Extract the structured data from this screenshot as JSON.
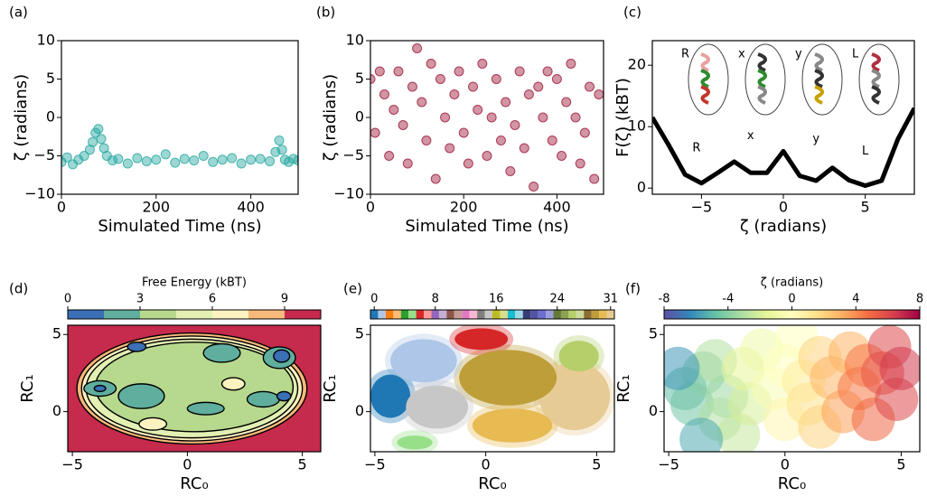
{
  "chart_data": [
    {
      "type": "scatter",
      "panel_label": "(a)",
      "xlabel": "Simulated Time (ns)",
      "ylabel": "ζ (radians)",
      "color": "#26a7a0",
      "x": [
        0,
        12,
        24,
        36,
        48,
        60,
        66,
        72,
        78,
        84,
        90,
        96,
        108,
        120,
        140,
        160,
        180,
        200,
        220,
        240,
        260,
        280,
        300,
        320,
        340,
        360,
        380,
        400,
        420,
        440,
        452,
        460,
        466,
        472,
        480,
        490,
        500
      ],
      "values": [
        -5.8,
        -5.2,
        -6.1,
        -5.5,
        -5.0,
        -4.2,
        -3.2,
        -2.0,
        -1.5,
        -2.8,
        -4.0,
        -5.0,
        -5.6,
        -5.4,
        -6.0,
        -5.3,
        -5.7,
        -5.5,
        -4.8,
        -5.9,
        -5.4,
        -5.6,
        -5.0,
        -5.8,
        -5.5,
        -5.3,
        -6.0,
        -5.5,
        -5.4,
        -5.7,
        -4.5,
        -3.0,
        -4.2,
        -5.5,
        -5.8,
        -5.4,
        -5.6
      ],
      "xlim": [
        0,
        500
      ],
      "ylim": [
        -10,
        10
      ],
      "xticks": [
        0,
        200,
        400
      ],
      "yticks": [
        {
          "value": -10,
          "label": "−10"
        },
        {
          "value": -5,
          "label": "−5"
        },
        0,
        5,
        10
      ]
    },
    {
      "type": "scatter",
      "panel_label": "(b)",
      "xlabel": "Simulated Time (ns)",
      "ylabel": "ζ (radians)",
      "color": "#9b1536",
      "x": [
        0,
        10,
        20,
        30,
        40,
        50,
        60,
        70,
        80,
        90,
        100,
        110,
        120,
        130,
        140,
        150,
        160,
        170,
        180,
        190,
        200,
        210,
        220,
        230,
        240,
        250,
        260,
        270,
        280,
        290,
        300,
        310,
        320,
        330,
        340,
        350,
        360,
        370,
        380,
        390,
        400,
        410,
        420,
        430,
        440,
        450,
        460,
        470,
        480,
        490
      ],
      "values": [
        5,
        -2,
        6,
        3,
        -5,
        1,
        6,
        -1,
        -6,
        4,
        9,
        2,
        -3,
        7,
        -8,
        5,
        0,
        -4,
        3,
        6,
        -2,
        -6,
        4,
        1,
        7,
        -5,
        0,
        5,
        -3,
        2,
        -7,
        -1,
        6,
        -4,
        3,
        -9,
        4,
        0,
        6,
        -3,
        5,
        -5,
        2,
        7,
        0,
        -6,
        -2,
        4,
        -8,
        3
      ],
      "xlim": [
        0,
        500
      ],
      "ylim": [
        -10,
        10
      ],
      "xticks": [
        0,
        200,
        400
      ],
      "yticks": [
        {
          "value": -10,
          "label": "−10"
        },
        {
          "value": -5,
          "label": "−5"
        },
        0,
        5,
        10
      ]
    },
    {
      "type": "line",
      "panel_label": "(c)",
      "xlabel": "ζ (radians)",
      "ylabel": "F(ζ) (kBT)",
      "color": "#000000",
      "x": [
        -8,
        -7,
        -6,
        -5,
        -4,
        -3,
        -2,
        -1,
        0,
        1,
        2,
        3,
        4,
        5,
        6,
        7,
        8
      ],
      "values": [
        11.5,
        7,
        2.2,
        0.8,
        2.5,
        4.3,
        2.5,
        2.5,
        6,
        2.0,
        1.2,
        3.3,
        1.3,
        0.4,
        1.2,
        8,
        13
      ],
      "xlim": [
        -8,
        8
      ],
      "ylim": [
        -1,
        24
      ],
      "xticks": [
        {
          "value": -5,
          "label": "−5"
        },
        0,
        5
      ],
      "yticks": [
        0,
        10,
        20
      ],
      "annotations": [
        {
          "text": "R",
          "x": -5.3,
          "y": 6.5
        },
        {
          "text": "x",
          "x": -2,
          "y": 8.5
        },
        {
          "text": "y",
          "x": 2,
          "y": 8
        },
        {
          "text": "L",
          "x": 5,
          "y": 6
        }
      ],
      "inset_labels": [
        "R",
        "x",
        "y",
        "L"
      ]
    },
    {
      "type": "contour",
      "panel_label": "(d)",
      "xlabel": "RC₀",
      "ylabel": "RC₁",
      "background_level": 10,
      "xlim": [
        -5.2,
        5.8
      ],
      "ylim": [
        -2.6,
        5.6
      ],
      "xticks": [
        {
          "value": -5,
          "label": "−5"
        },
        0,
        5
      ],
      "yticks": [
        0,
        5
      ],
      "colorbar": {
        "label": "Free Energy (kBT)",
        "lim": [
          0,
          10.5
        ],
        "ticks": [
          0,
          3,
          6,
          9
        ],
        "bounds": [
          0,
          1.5,
          3,
          4.5,
          6,
          7.5,
          9,
          10.5
        ],
        "colors": [
          "#3b6fb6",
          "#5fae9e",
          "#b7d98e",
          "#e3f0b4",
          "#fdf3c1",
          "#f8b97a",
          "#c62a4c"
        ]
      },
      "regions": [
        {
          "x": 0.2,
          "y": 1.5,
          "rx": 5.0,
          "ry": 3.6,
          "level": 8.0
        },
        {
          "x": 0.2,
          "y": 1.5,
          "rx": 4.8,
          "ry": 3.4,
          "level": 6.5
        },
        {
          "x": 0.2,
          "y": 1.5,
          "rx": 4.6,
          "ry": 3.2,
          "level": 5.0
        },
        {
          "x": 0.3,
          "y": 1.6,
          "rx": 4.3,
          "ry": 2.9,
          "level": 3.5
        },
        {
          "x": -1.5,
          "y": -0.8,
          "rx": 0.6,
          "ry": 0.4,
          "level": 6.0
        },
        {
          "x": 2.0,
          "y": 1.8,
          "rx": 0.5,
          "ry": 0.4,
          "level": 6.0
        },
        {
          "x": -2.0,
          "y": 1.0,
          "rx": 1.0,
          "ry": 0.8,
          "level": 2.0
        },
        {
          "x": 1.5,
          "y": 3.8,
          "rx": 0.8,
          "ry": 0.6,
          "level": 2.0
        },
        {
          "x": -3.8,
          "y": 1.5,
          "rx": 0.7,
          "ry": 0.5,
          "level": 2.0
        },
        {
          "x": 4.0,
          "y": 3.5,
          "rx": 0.7,
          "ry": 0.7,
          "level": 2.0
        },
        {
          "x": 3.3,
          "y": 0.8,
          "rx": 0.7,
          "ry": 0.5,
          "level": 2.0
        },
        {
          "x": 0.8,
          "y": 0.2,
          "rx": 0.8,
          "ry": 0.4,
          "level": 2.0
        },
        {
          "x": -2.2,
          "y": 4.2,
          "rx": 0.4,
          "ry": 0.3,
          "level": 0.5
        },
        {
          "x": 4.1,
          "y": 3.6,
          "rx": 0.35,
          "ry": 0.4,
          "level": 0.5
        },
        {
          "x": 4.2,
          "y": 1.0,
          "rx": 0.3,
          "ry": 0.3,
          "level": 0.5
        },
        {
          "x": -3.8,
          "y": 1.5,
          "rx": 0.25,
          "ry": 0.2,
          "level": 0.5
        }
      ]
    },
    {
      "type": "cluster_map",
      "panel_label": "(e)",
      "xlabel": "RC₀",
      "ylabel": "RC₁",
      "xlim": [
        -5.2,
        5.8
      ],
      "ylim": [
        -2.6,
        5.6
      ],
      "xticks": [
        {
          "value": -5,
          "label": "−5"
        },
        0,
        5
      ],
      "yticks": [
        0,
        5
      ],
      "colorbar": {
        "lim": [
          -0.5,
          31.5
        ],
        "ticks": [
          0,
          8,
          16,
          24,
          31
        ],
        "colors": [
          "#1f77b4",
          "#aec7e8",
          "#ff7f0e",
          "#ffbb78",
          "#2ca02c",
          "#98df8a",
          "#d62728",
          "#ff9896",
          "#9467bd",
          "#c5b0d5",
          "#8c564b",
          "#c49c94",
          "#e377c2",
          "#f7b6d2",
          "#7f7f7f",
          "#c7c7c7",
          "#bcbd22",
          "#dbdb8d",
          "#17becf",
          "#9edae5",
          "#393b79",
          "#5254a3",
          "#6b6ecf",
          "#9c9ede",
          "#637939",
          "#8ca252",
          "#b5cf6b",
          "#cedb9c",
          "#8c6d31",
          "#bd9e39",
          "#e7ba52",
          "#e7cb94"
        ]
      },
      "clusters": [
        {
          "x": 4.0,
          "y": 1.0,
          "rx": 1.6,
          "ry": 2.2,
          "id": 31
        },
        {
          "x": 4.2,
          "y": 3.6,
          "rx": 0.9,
          "ry": 1.0,
          "id": 26
        },
        {
          "x": 1.0,
          "y": 2.2,
          "rx": 2.2,
          "ry": 1.8,
          "id": 29
        },
        {
          "x": 1.2,
          "y": -0.9,
          "rx": 1.8,
          "ry": 1.1,
          "id": 30
        },
        {
          "x": -2.8,
          "y": 3.3,
          "rx": 1.5,
          "ry": 1.4,
          "id": 1
        },
        {
          "x": -4.3,
          "y": 1.0,
          "rx": 0.9,
          "ry": 1.4,
          "id": 0
        },
        {
          "x": -0.2,
          "y": 4.7,
          "rx": 1.2,
          "ry": 0.7,
          "id": 6
        },
        {
          "x": -2.2,
          "y": 0.3,
          "rx": 1.4,
          "ry": 1.4,
          "id": 15
        },
        {
          "x": -3.2,
          "y": -2.0,
          "rx": 0.8,
          "ry": 0.45,
          "id": 5
        }
      ]
    },
    {
      "type": "scatter",
      "panel_label": "(f)",
      "xlabel": "RC₀",
      "ylabel": "RC₁",
      "xlim": [
        -5.2,
        5.8
      ],
      "ylim": [
        -2.6,
        5.6
      ],
      "xticks": [
        {
          "value": -5,
          "label": "−5"
        },
        0,
        5
      ],
      "yticks": [
        0,
        5
      ],
      "x": [
        -4.3,
        -4,
        -3.5,
        -3,
        -2.5,
        -2.8,
        -2,
        -1.5,
        -1.8,
        -1,
        -0.5,
        0,
        0,
        0.5,
        0.8,
        1,
        1.5,
        1.5,
        2,
        2.5,
        2.8,
        3.2,
        3.5,
        3.8,
        4.2,
        4.5,
        4.8,
        5,
        -3.6,
        -4.6
      ],
      "values": [
        1.5,
        0.5,
        2.5,
        3.3,
        1,
        -0.5,
        -1.5,
        0.5,
        2.8,
        4,
        1.5,
        3,
        -0.5,
        4.8,
        2,
        0.5,
        -1,
        3.5,
        2.2,
        0,
        3.8,
        1.5,
        3,
        -0.5,
        2.5,
        4.2,
        0.8,
        2.8,
        -1.8,
        2.8
      ],
      "color_values": [
        -5,
        -4.5,
        -4,
        -3,
        -3.5,
        -3,
        -2.5,
        -2,
        -1.5,
        -1,
        -0.5,
        0,
        0.5,
        0,
        1,
        1.5,
        2,
        2,
        3,
        3.5,
        3,
        4.5,
        4.5,
        5,
        5.5,
        6,
        6,
        6.5,
        -5.5,
        -6
      ],
      "colorbar": {
        "label": "ζ (radians)",
        "lim": [
          -8,
          8
        ],
        "ticks": [
          {
            "value": -8,
            "label": "-8"
          },
          {
            "value": -4,
            "label": "-4"
          },
          0,
          4,
          8
        ],
        "colormap": [
          "#5e4fa2",
          "#3288bd",
          "#66c2a5",
          "#abdda4",
          "#e6f598",
          "#ffffbf",
          "#fee08b",
          "#fdae61",
          "#f46d43",
          "#d53e4f",
          "#9e0142"
        ]
      }
    }
  ]
}
